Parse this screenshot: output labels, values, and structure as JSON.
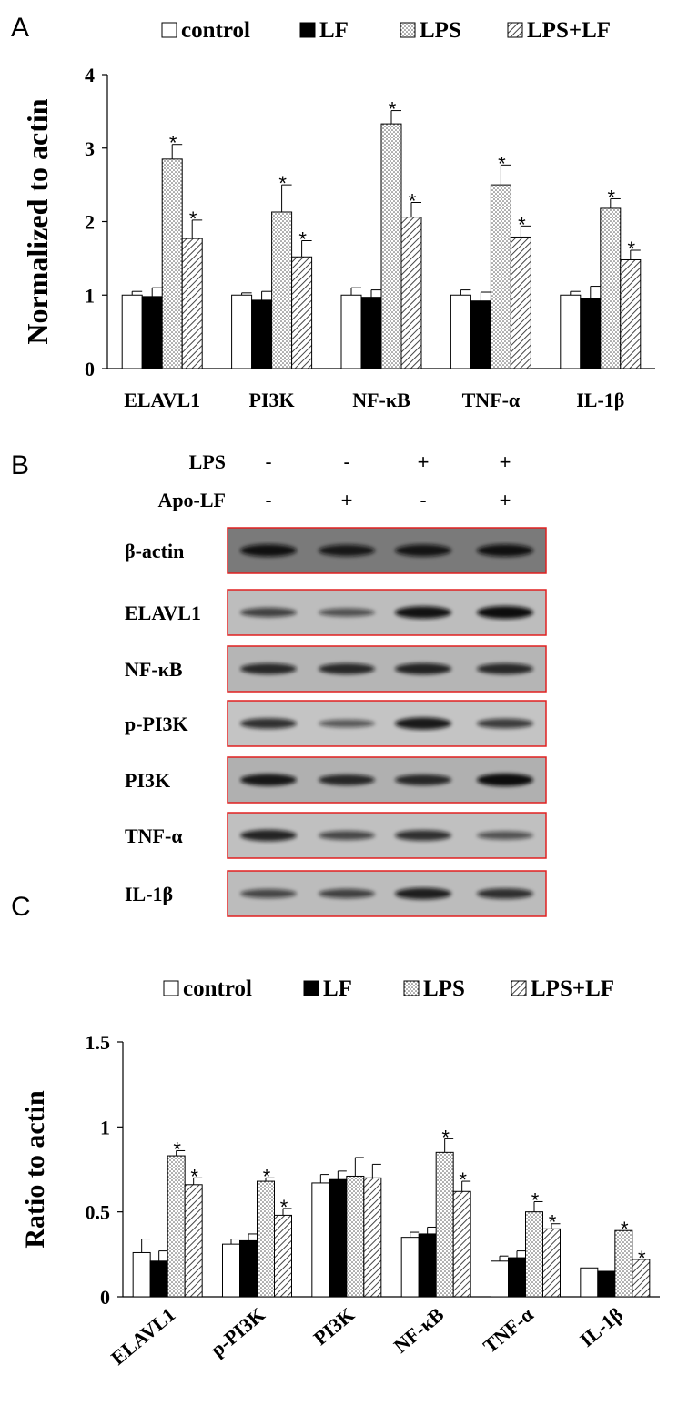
{
  "panels": {
    "A": "A",
    "B": "B",
    "C": "C"
  },
  "legend_labels": [
    "control",
    "LF",
    "LPS",
    "LPS+LF"
  ],
  "colors": {
    "control": "#ffffff",
    "LF": "#000000",
    "LPS": "#dcdcdc",
    "LPS_LF": "#bdbdbd",
    "box_border": "#e02020",
    "blot_band": "#111111"
  },
  "chart_data": [
    {
      "type": "bar",
      "panel": "A",
      "ylabel": "Normalized to actin",
      "ylim": [
        0,
        4
      ],
      "yticks": [
        0,
        1,
        2,
        3,
        4
      ],
      "ytick_labels": [
        "0",
        "1",
        "2",
        "3",
        "4"
      ],
      "categories": [
        "ELAVL1",
        "PI3K",
        "NF-κB",
        "TNF-α",
        "IL-1β"
      ],
      "series": [
        {
          "name": "control",
          "values": [
            1.0,
            1.0,
            1.0,
            1.0,
            1.0
          ],
          "errors": [
            0.05,
            0.03,
            0.1,
            0.07,
            0.05
          ]
        },
        {
          "name": "LF",
          "values": [
            0.98,
            0.93,
            0.97,
            0.92,
            0.95
          ],
          "errors": [
            0.12,
            0.12,
            0.1,
            0.12,
            0.17
          ]
        },
        {
          "name": "LPS",
          "values": [
            2.85,
            2.13,
            3.33,
            2.5,
            2.18
          ],
          "errors": [
            0.2,
            0.37,
            0.18,
            0.27,
            0.13
          ]
        },
        {
          "name": "LPS+LF",
          "values": [
            1.77,
            1.52,
            2.06,
            1.79,
            1.48
          ],
          "errors": [
            0.25,
            0.22,
            0.2,
            0.15,
            0.13
          ]
        }
      ],
      "significant_series": [
        "LPS",
        "LPS+LF"
      ],
      "significance_mark": "*",
      "legend": "top"
    },
    {
      "type": "bar",
      "panel": "C",
      "ylabel": "Ratio to actin",
      "ylim": [
        0,
        1.5
      ],
      "yticks": [
        0,
        0.5,
        1,
        1.5
      ],
      "ytick_labels": [
        "0",
        "0.5",
        "1",
        "1.5"
      ],
      "categories": [
        "ELAVL1",
        "p-PI3K",
        "PI3K",
        "NF-κB",
        "TNF-α",
        "IL-1β"
      ],
      "series": [
        {
          "name": "control",
          "values": [
            0.26,
            0.31,
            0.67,
            0.35,
            0.21,
            0.17
          ],
          "errors": [
            0.08,
            0.03,
            0.05,
            0.03,
            0.03,
            0.0
          ]
        },
        {
          "name": "LF",
          "values": [
            0.21,
            0.33,
            0.69,
            0.37,
            0.23,
            0.15
          ],
          "errors": [
            0.06,
            0.04,
            0.05,
            0.04,
            0.04,
            0.0
          ]
        },
        {
          "name": "LPS",
          "values": [
            0.83,
            0.68,
            0.71,
            0.85,
            0.5,
            0.39
          ],
          "errors": [
            0.03,
            0.02,
            0.11,
            0.08,
            0.06,
            0.0
          ]
        },
        {
          "name": "LPS+LF",
          "values": [
            0.66,
            0.48,
            0.7,
            0.62,
            0.4,
            0.22
          ],
          "errors": [
            0.04,
            0.04,
            0.08,
            0.06,
            0.03,
            0.0
          ]
        }
      ],
      "significant_categories": [
        "ELAVL1",
        "p-PI3K",
        "NF-κB",
        "TNF-α",
        "IL-1β"
      ],
      "significant_series": [
        "LPS",
        "LPS+LF"
      ],
      "significance_mark": "*",
      "legend": "top"
    }
  ],
  "blot": {
    "conditions": [
      {
        "label": "LPS",
        "signs": [
          "-",
          "-",
          "+",
          "+"
        ]
      },
      {
        "label": "Apo-LF",
        "signs": [
          "-",
          "+",
          "-",
          "+"
        ]
      }
    ],
    "rows": [
      {
        "label": "β-actin",
        "intensity": [
          0.95,
          0.85,
          0.9,
          0.95
        ],
        "background": "#7a7a7a"
      },
      {
        "label": "ELAVL1",
        "intensity": [
          0.55,
          0.4,
          0.95,
          1.0
        ],
        "background": "#bdbdbd"
      },
      {
        "label": "NF-κB",
        "intensity": [
          0.75,
          0.75,
          0.8,
          0.75
        ],
        "background": "#b5b5b5"
      },
      {
        "label": "p-PI3K",
        "intensity": [
          0.7,
          0.35,
          0.9,
          0.6
        ],
        "background": "#c4c4c4"
      },
      {
        "label": "PI3K",
        "intensity": [
          0.9,
          0.75,
          0.75,
          1.0
        ],
        "background": "#b0b0b0"
      },
      {
        "label": "TNF-α",
        "intensity": [
          0.8,
          0.5,
          0.7,
          0.4
        ],
        "background": "#c0c0c0"
      },
      {
        "label": "IL-1β",
        "intensity": [
          0.5,
          0.55,
          0.85,
          0.7
        ],
        "background": "#bcbcbc"
      }
    ]
  }
}
